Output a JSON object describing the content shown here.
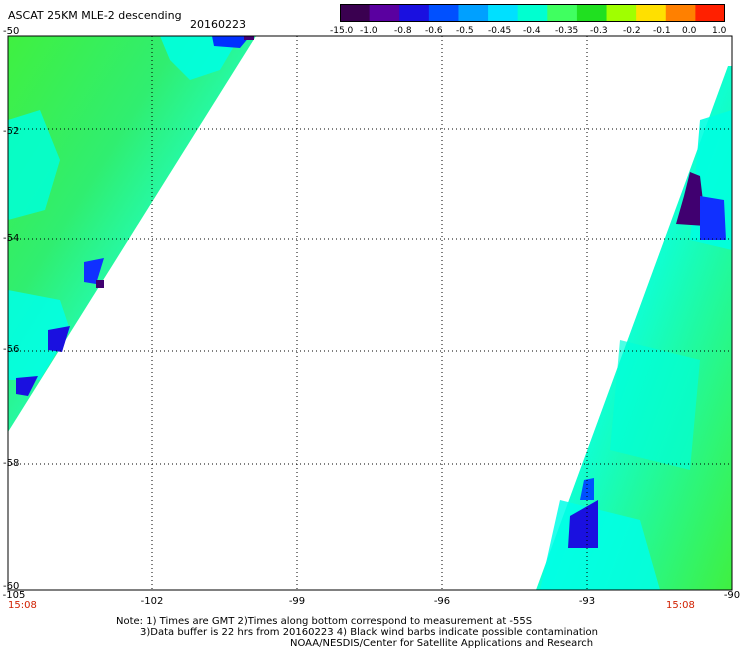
{
  "header": {
    "title": "ASCAT 25KM MLE-2 descending",
    "date": "20160223"
  },
  "colorbar": {
    "labels": [
      "-15.0",
      "-1.0",
      "-0.8",
      "-0.6",
      "-0.5",
      "-0.45",
      "-0.4",
      "-0.35",
      "-0.3",
      "-0.2",
      "-0.1",
      "0.0",
      "1.0"
    ],
    "colors": [
      "#3a0050",
      "#5a00a0",
      "#1a10e0",
      "#0050ff",
      "#00a0ff",
      "#00e0ff",
      "#00ffd0",
      "#40ff60",
      "#20e020",
      "#a0ff00",
      "#ffe000",
      "#ff8000",
      "#ff2000"
    ]
  },
  "axes": {
    "lat_labels": [
      "-50",
      "-52",
      "-54",
      "-56",
      "-58",
      "-60"
    ],
    "lon_labels": [
      "-105",
      "-102",
      "-99",
      "-96",
      "-93",
      "-90"
    ]
  },
  "times": {
    "left": "15:08",
    "right": "15:08"
  },
  "notes": {
    "line1": "Note: 1) Times are GMT 2)Times along bottom correspond to measurement at -55S",
    "line2": "3)Data buffer is 22 hrs from 20160223 4) Black wind barbs indicate possible contamination",
    "line3": "NOAA/NESDIS/Center for Satellite Applications and Research"
  },
  "palette": {
    "green": "#40f040",
    "cyan": "#00ffe0",
    "blue": "#0020ff",
    "purple": "#400070",
    "time_red": "#d02000"
  }
}
